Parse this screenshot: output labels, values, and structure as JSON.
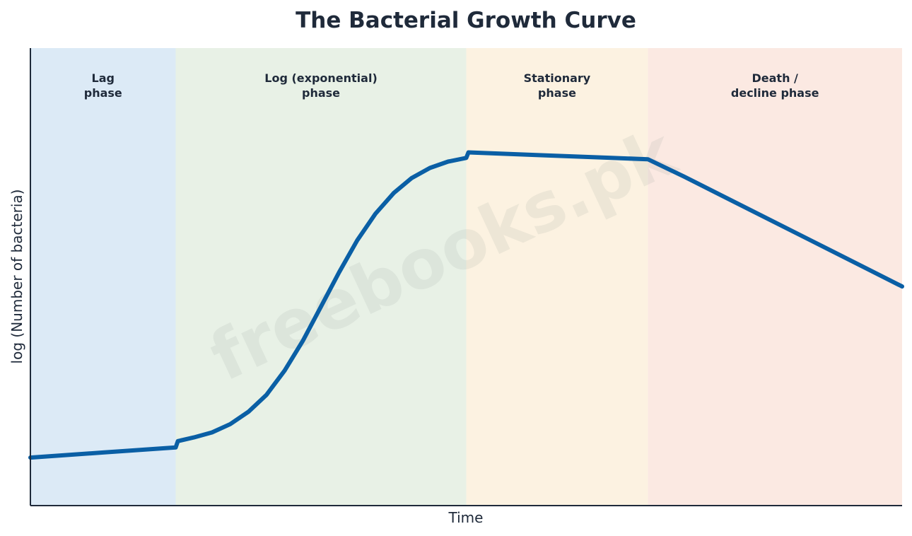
{
  "chart_data": {
    "type": "line",
    "title": "The Bacterial Growth Curve",
    "xlabel": "Time",
    "ylabel": "log (Number of bacteria)",
    "xlim": [
      0,
      12
    ],
    "ylim": [
      0,
      10
    ],
    "grid": false,
    "legend": "none",
    "phases": [
      {
        "label_lines": [
          "Lag",
          "phase"
        ],
        "start": 0,
        "end": 2,
        "color": "#dceaf6"
      },
      {
        "label_lines": [
          "Log (exponential)",
          "phase"
        ],
        "start": 2,
        "end": 6,
        "color": "#e8f1e6"
      },
      {
        "label_lines": [
          "Stationary",
          "phase"
        ],
        "start": 6,
        "end": 8.5,
        "color": "#fcf2e1"
      },
      {
        "label_lines": [
          "Death /",
          "decline phase"
        ],
        "start": 8.5,
        "end": 12,
        "color": "#fbe9e2"
      }
    ],
    "series": [
      {
        "color": "#0a5fa5",
        "points": [
          [
            0,
            1.05
          ],
          [
            1,
            1.16
          ],
          [
            2,
            1.27
          ],
          [
            2.03,
            1.41
          ],
          [
            2.25,
            1.49
          ],
          [
            2.5,
            1.6
          ],
          [
            2.75,
            1.78
          ],
          [
            3,
            2.05
          ],
          [
            3.25,
            2.42
          ],
          [
            3.5,
            2.95
          ],
          [
            3.75,
            3.6
          ],
          [
            4,
            4.35
          ],
          [
            4.25,
            5.1
          ],
          [
            4.5,
            5.8
          ],
          [
            4.75,
            6.38
          ],
          [
            5,
            6.83
          ],
          [
            5.25,
            7.16
          ],
          [
            5.5,
            7.38
          ],
          [
            5.75,
            7.52
          ],
          [
            6,
            7.6
          ],
          [
            6.03,
            7.72
          ],
          [
            7,
            7.66
          ],
          [
            8,
            7.6
          ],
          [
            8.5,
            7.57
          ],
          [
            9,
            7.19
          ],
          [
            10,
            6.39
          ],
          [
            11,
            5.59
          ],
          [
            12,
            4.79
          ]
        ]
      }
    ]
  },
  "watermark": "freebooks.pk",
  "colors": {
    "text": "#1f2a3a",
    "axis": "#1f2a3a",
    "line": "#0a5fa5"
  }
}
